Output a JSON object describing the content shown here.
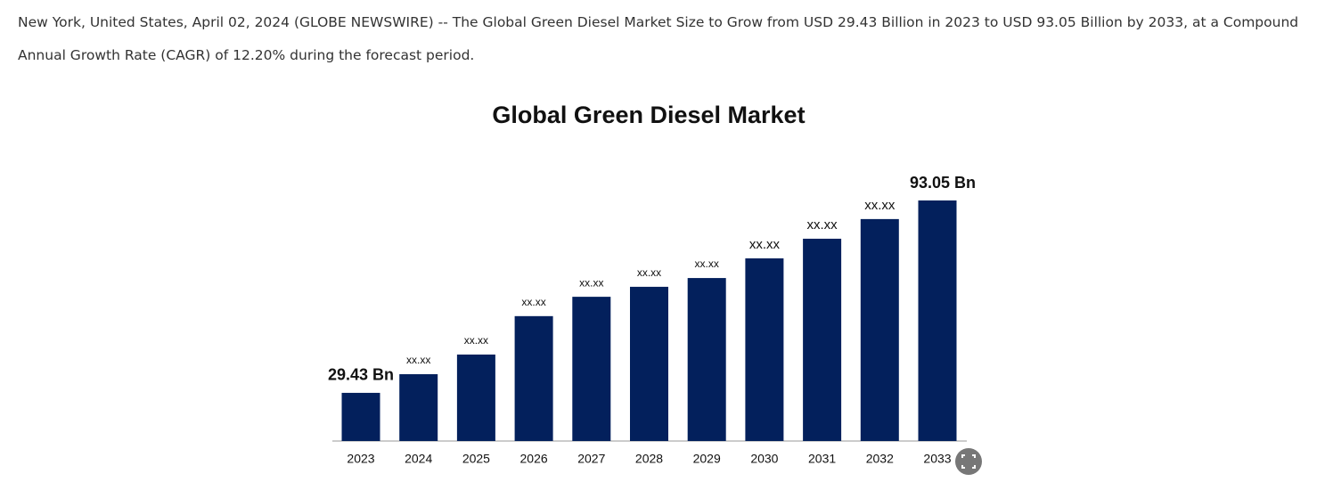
{
  "article": {
    "text": "New York, United States, April 02, 2024 (GLOBE NEWSWIRE) -- The Global Green Diesel Market Size to Grow from USD 29.43 Billion in 2023 to USD 93.05 Billion by 2033, at a Compound Annual Growth Rate (CAGR) of 12.20% during the forecast period."
  },
  "chart_data": {
    "type": "bar",
    "title": "Global Green Diesel Market",
    "categories": [
      "2023",
      "2024",
      "2025",
      "2026",
      "2027",
      "2028",
      "2029",
      "2030",
      "2031",
      "2032",
      "2033"
    ],
    "values": [
      29.43,
      35.6,
      42.1,
      54.8,
      61.2,
      64.5,
      67.4,
      73.9,
      80.4,
      86.9,
      93.05
    ],
    "value_labels": [
      "29.43 Bn",
      "xx.xx",
      "xx.xx",
      "xx.xx",
      "xx.xx",
      "xx.xx",
      "xx.xx",
      "xx.xx",
      "xx.xx",
      "xx.xx",
      "93.05 Bn"
    ],
    "color": "#03205c",
    "ylim": [
      13.5,
      96
    ]
  }
}
